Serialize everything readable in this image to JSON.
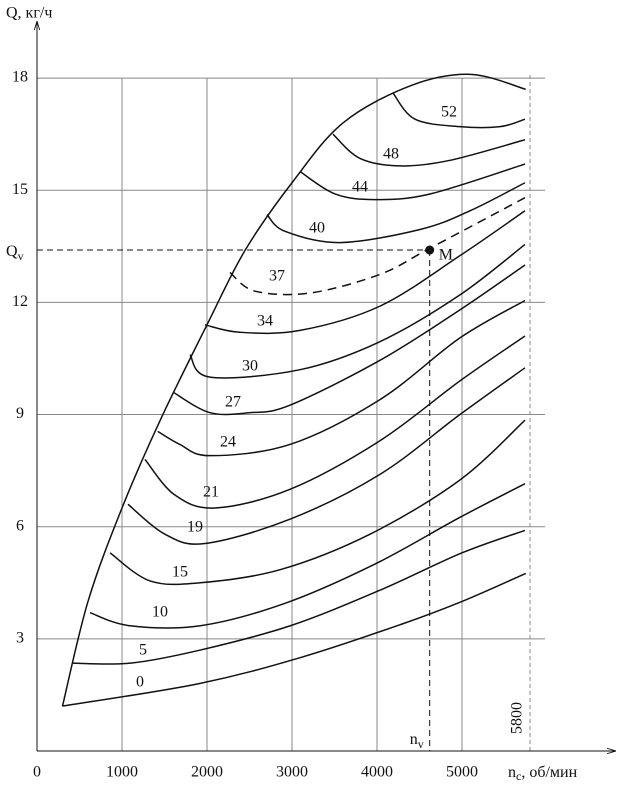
{
  "chart_data": {
    "type": "line",
    "y_label": "Q, кг/ч",
    "x_label": "n",
    "x_label_sub": "c",
    "x_label_rest": ", об/мин",
    "xlim": [
      0,
      6800
    ],
    "ylim": [
      0,
      19.5
    ],
    "xticks": [
      0,
      1000,
      2000,
      3000,
      4000,
      5000
    ],
    "yticks": [
      3,
      6,
      9,
      12,
      15,
      18
    ],
    "grid": true,
    "color": "#000000",
    "limit_line": {
      "x": 5800,
      "label": "5800"
    },
    "point": {
      "label": "M",
      "x": 4620,
      "y": 13.4,
      "x_label": "n",
      "x_label_sub": "v",
      "y_label": "Q",
      "y_label_sub": "v"
    },
    "envelope": {
      "x": [
        300,
        600,
        1000,
        1450,
        2000,
        2450,
        3000,
        3600,
        4400,
        5100,
        5750
      ],
      "values": [
        1.2,
        4.0,
        6.5,
        8.85,
        11.4,
        13.4,
        15.2,
        16.8,
        17.8,
        18.1,
        17.7
      ]
    },
    "series": [
      {
        "name": "0",
        "x": [
          300,
          1900,
          3100,
          4300,
          5000,
          5750
        ],
        "values": [
          1.2,
          1.8,
          2.5,
          3.4,
          4.0,
          4.75
        ]
      },
      {
        "name": "5",
        "x": [
          420,
          1100,
          1920,
          2980,
          4035,
          5000,
          5740
        ],
        "values": [
          2.35,
          2.35,
          2.7,
          3.35,
          4.3,
          5.3,
          5.9
        ]
      },
      {
        "name": "10",
        "x": [
          624,
          1094,
          1920,
          2918,
          3976,
          4976,
          5741
        ],
        "values": [
          3.7,
          3.35,
          3.35,
          3.95,
          5.0,
          6.25,
          7.15
        ]
      },
      {
        "name": "15",
        "x": [
          860,
          1330,
          1920,
          2860,
          3918,
          4976,
          5741
        ],
        "values": [
          5.3,
          4.55,
          4.5,
          4.85,
          5.8,
          7.25,
          8.85
        ]
      },
      {
        "name": "19",
        "x": [
          1070,
          1505,
          1976,
          2976,
          4035,
          4976,
          5741
        ],
        "values": [
          6.6,
          5.8,
          5.55,
          6.2,
          7.4,
          9.0,
          10.25
        ]
      },
      {
        "name": "21",
        "x": [
          1270,
          1620,
          2094,
          2976,
          4035,
          4976,
          5741
        ],
        "values": [
          7.8,
          6.85,
          6.5,
          7.0,
          8.3,
          9.9,
          11.1
        ]
      },
      {
        "name": "24",
        "x": [
          1420,
          1680,
          2035,
          2976,
          4035,
          4976,
          5741
        ],
        "values": [
          8.55,
          8.2,
          7.9,
          8.2,
          9.4,
          11.05,
          12.05
        ]
      },
      {
        "name": "27",
        "x": [
          1600,
          2035,
          2505,
          2976,
          4035,
          4976,
          5741
        ],
        "values": [
          9.6,
          9.05,
          9.05,
          9.25,
          10.45,
          11.8,
          13.0
        ]
      },
      {
        "name": "30",
        "x": [
          1800,
          2035,
          3094,
          4035,
          4976,
          5741
        ],
        "values": [
          10.6,
          10.0,
          10.2,
          10.95,
          12.2,
          13.55
        ]
      },
      {
        "name": "34",
        "x": [
          1976,
          2388,
          3094,
          4035,
          4976,
          5741
        ],
        "values": [
          11.4,
          11.2,
          11.25,
          11.9,
          13.25,
          14.45
        ]
      },
      {
        "name": "37",
        "dashed": true,
        "x": [
          2270,
          2565,
          3212,
          4035,
          4624,
          5741
        ],
        "values": [
          12.8,
          12.3,
          12.25,
          12.75,
          13.45,
          14.8
        ]
      },
      {
        "name": "40",
        "x": [
          2706,
          2918,
          3565,
          4506,
          5094,
          5741
        ],
        "values": [
          14.35,
          13.9,
          13.6,
          13.95,
          14.45,
          15.2
        ]
      },
      {
        "name": "44",
        "x": [
          3094,
          3506,
          3976,
          4624,
          5741
        ],
        "values": [
          15.5,
          14.9,
          14.75,
          14.9,
          15.7
        ]
      },
      {
        "name": "48",
        "x": [
          3482,
          3800,
          4271,
          4859,
          5741
        ],
        "values": [
          16.5,
          15.85,
          15.65,
          15.8,
          16.35
        ]
      },
      {
        "name": "52",
        "x": [
          4188,
          4447,
          4976,
          5447,
          5741
        ],
        "values": [
          17.6,
          16.9,
          16.7,
          16.7,
          16.9
        ]
      }
    ]
  }
}
